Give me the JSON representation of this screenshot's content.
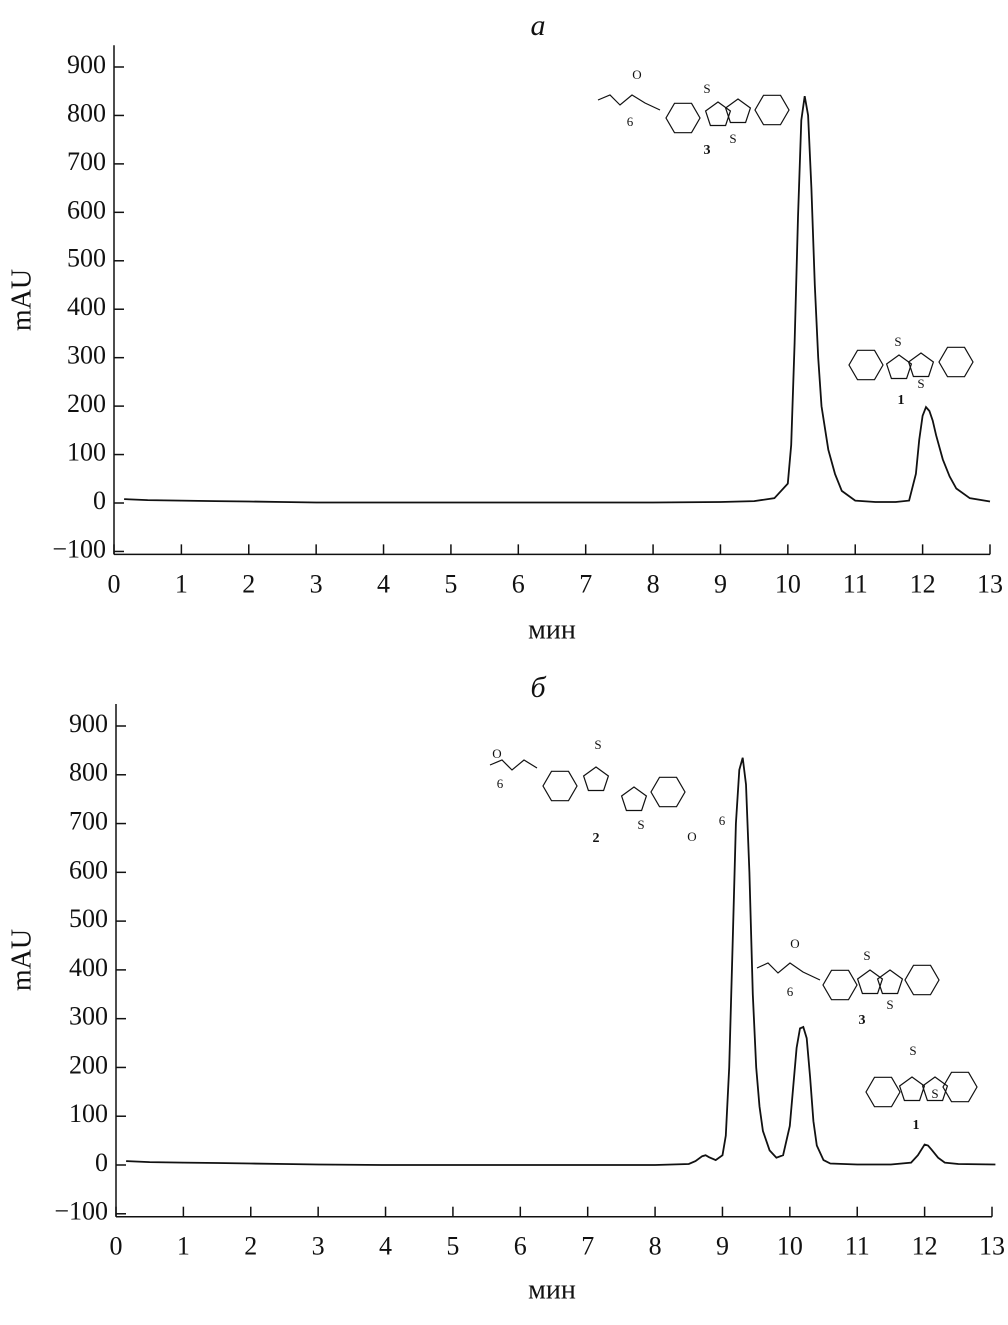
{
  "chart_data": [
    {
      "type": "line",
      "title": "a",
      "xlabel": "мин",
      "ylabel": "mAU",
      "xlim": [
        0,
        13
      ],
      "xticks": [
        0,
        1,
        2,
        3,
        4,
        5,
        6,
        7,
        8,
        9,
        10,
        11,
        12,
        13
      ],
      "ylim": [
        -106,
        945
      ],
      "yticks": [
        {
          "value": -100,
          "label": "−100"
        },
        0,
        100,
        200,
        300,
        400,
        500,
        600,
        700,
        800,
        900
      ],
      "x": [
        0.15,
        0.5,
        1,
        1.5,
        2,
        2.5,
        3,
        4,
        5,
        6,
        7,
        8,
        9,
        9.5,
        9.8,
        10.0,
        10.05,
        10.1,
        10.15,
        10.2,
        10.25,
        10.3,
        10.35,
        10.4,
        10.45,
        10.5,
        10.6,
        10.7,
        10.8,
        11,
        11.3,
        11.6,
        11.8,
        11.9,
        11.95,
        12.0,
        12.05,
        12.1,
        12.15,
        12.2,
        12.3,
        12.4,
        12.5,
        12.7,
        13
      ],
      "series": [
        {
          "color": "#111111",
          "values": [
            8,
            6,
            5,
            4,
            3,
            2,
            1,
            1,
            1,
            1,
            1,
            1,
            2,
            4,
            10,
            40,
            120,
            330,
            590,
            790,
            840,
            800,
            650,
            450,
            300,
            200,
            110,
            60,
            25,
            5,
            2,
            2,
            5,
            60,
            130,
            180,
            198,
            190,
            170,
            140,
            90,
            55,
            30,
            10,
            3
          ]
        }
      ],
      "annotations": [
        {
          "label": "3",
          "atoms": [
            "O",
            "6",
            "S",
            "S"
          ]
        },
        {
          "label": "1",
          "atoms": [
            "S",
            "S"
          ]
        }
      ]
    },
    {
      "type": "line",
      "title": "б",
      "xlabel": "мин",
      "ylabel": "mAU",
      "xlim": [
        0,
        13
      ],
      "xticks": [
        0,
        1,
        2,
        3,
        4,
        5,
        6,
        7,
        8,
        9,
        10,
        11,
        12,
        13
      ],
      "ylim": [
        -106,
        945
      ],
      "yticks": [
        {
          "value": -100,
          "label": "−100"
        },
        0,
        100,
        200,
        300,
        400,
        500,
        600,
        700,
        800,
        900
      ],
      "x": [
        0.15,
        0.5,
        1,
        1.5,
        2,
        2.5,
        3,
        4,
        5,
        6,
        7,
        8,
        8.5,
        8.6,
        8.7,
        8.75,
        8.8,
        8.9,
        9.0,
        9.05,
        9.1,
        9.15,
        9.2,
        9.25,
        9.3,
        9.35,
        9.4,
        9.45,
        9.5,
        9.55,
        9.6,
        9.7,
        9.8,
        9.9,
        10.0,
        10.05,
        10.1,
        10.15,
        10.2,
        10.25,
        10.3,
        10.35,
        10.4,
        10.5,
        10.6,
        11,
        11.5,
        11.8,
        11.9,
        12.0,
        12.05,
        12.1,
        12.2,
        12.3,
        12.5,
        13.05
      ],
      "series": [
        {
          "color": "#111111",
          "values": [
            8,
            6,
            5,
            4,
            3,
            2,
            1,
            0,
            0,
            0,
            0,
            0,
            2,
            8,
            18,
            20,
            16,
            10,
            20,
            60,
            200,
            450,
            700,
            810,
            835,
            780,
            600,
            350,
            200,
            120,
            70,
            30,
            15,
            20,
            80,
            160,
            240,
            280,
            283,
            260,
            180,
            90,
            40,
            10,
            3,
            1,
            1,
            5,
            20,
            42,
            40,
            32,
            15,
            5,
            2,
            1
          ]
        }
      ],
      "annotations": [
        {
          "label": "2",
          "atoms": [
            "O",
            "6",
            "S",
            "S",
            "O",
            "6"
          ]
        },
        {
          "label": "3",
          "atoms": [
            "O",
            "6",
            "S",
            "S"
          ]
        },
        {
          "label": "1",
          "atoms": [
            "S",
            "S"
          ]
        }
      ]
    }
  ]
}
